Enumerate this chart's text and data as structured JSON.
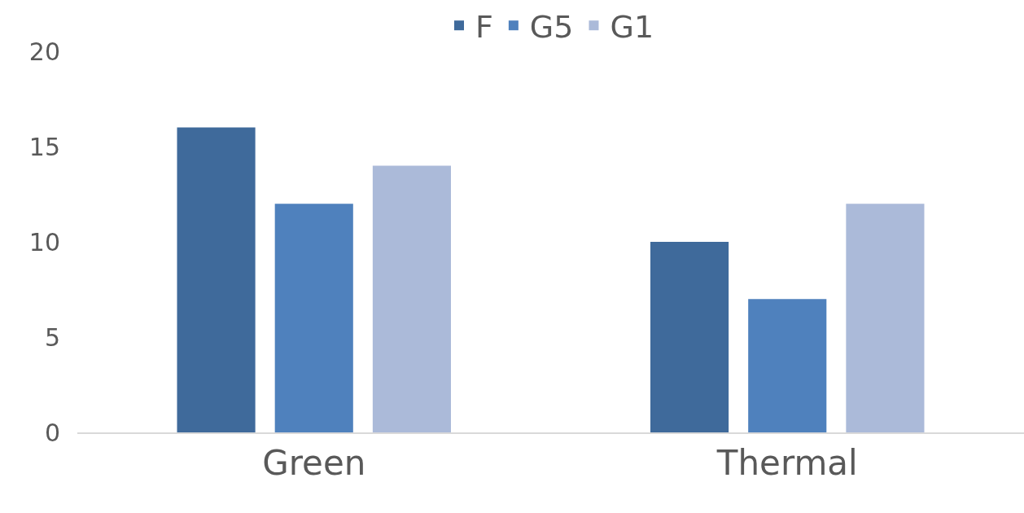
{
  "chart_data": {
    "type": "bar",
    "categories": [
      "Green",
      "Thermal"
    ],
    "series": [
      {
        "name": "F",
        "color": "#3f6a9b",
        "values": [
          16,
          10
        ]
      },
      {
        "name": "G5",
        "color": "#4f81bd",
        "values": [
          12,
          7
        ]
      },
      {
        "name": "G1",
        "color": "#abbad9",
        "values": [
          14,
          12
        ]
      }
    ],
    "ylim": [
      0,
      20
    ],
    "yticks": [
      0,
      5,
      10,
      15,
      20
    ],
    "grid": false,
    "legend": "top"
  }
}
